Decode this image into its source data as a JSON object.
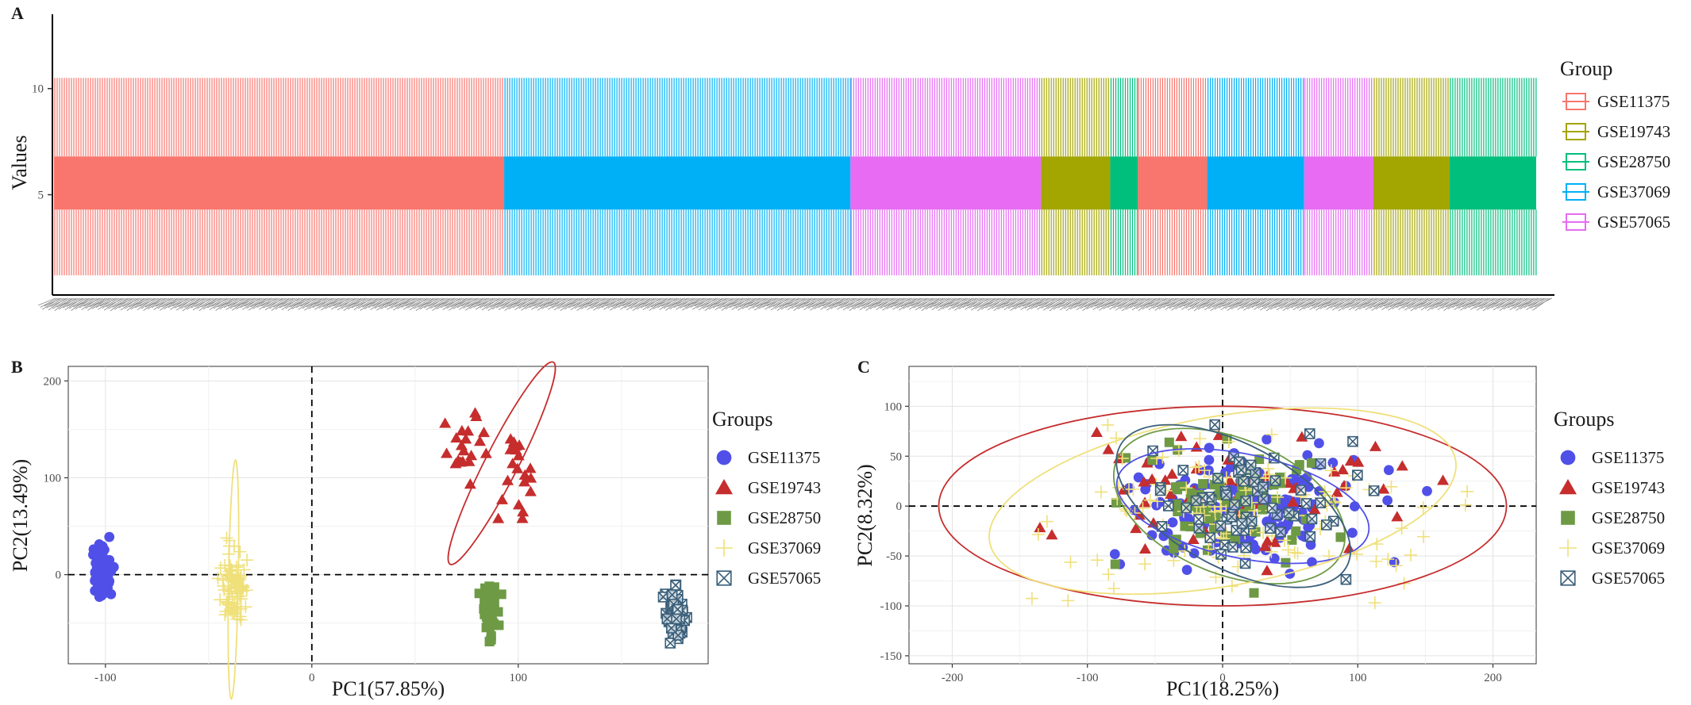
{
  "figure": {
    "panel_a": {
      "letter": "A",
      "ylabel": "Values",
      "legend_title": "Group"
    },
    "panel_b": {
      "letter": "B",
      "xlabel": "PC1(57.85%)",
      "ylabel": "PC2(13.49%)",
      "legend_title": "Groups"
    },
    "panel_c": {
      "letter": "C",
      "xlabel": "PC1(18.25%)",
      "ylabel": "PC2(8.32%)",
      "legend_title": "Groups"
    }
  },
  "colors": {
    "GSE11375_box": "#F8766D",
    "GSE19743_box": "#A3A500",
    "GSE28750_box": "#00BF7D",
    "GSE37069_box": "#00B0F6",
    "GSE57065_box": "#E76BF3",
    "GSE11375_pca": "#5050E8",
    "GSE19743_pca": "#C62D2D",
    "GSE28750_pca": "#6E9A45",
    "GSE37069_pca": "#EFE07A",
    "GSE57065_pca": "#3A5F7A"
  },
  "chart_data": [
    {
      "type": "boxplot",
      "panel": "A",
      "title": "",
      "ylabel": "Values",
      "xlabel": "",
      "ylim": [
        0.5,
        13.5
      ],
      "yticks": [
        5,
        10
      ],
      "legend": {
        "title": "Group",
        "position": "right",
        "entries": [
          "GSE11375",
          "GSE19743",
          "GSE28750",
          "GSE37069",
          "GSE57065"
        ]
      },
      "box_stats": {
        "whisker_low": 1.2,
        "q1": 4.3,
        "q3": 6.8,
        "whisker_high": 10.5
      },
      "segments": [
        {
          "group": "GSE11375",
          "samples": 130
        },
        {
          "group": "GSE37069",
          "samples": 100
        },
        {
          "group": "GSE57065",
          "samples": 55
        },
        {
          "group": "GSE19743",
          "samples": 20
        },
        {
          "group": "GSE28750",
          "samples": 8
        },
        {
          "group": "GSE11375",
          "samples": 20
        },
        {
          "group": "GSE37069",
          "samples": 28
        },
        {
          "group": "GSE57065",
          "samples": 20
        },
        {
          "group": "GSE19743",
          "samples": 22
        },
        {
          "group": "GSE28750",
          "samples": 25
        }
      ]
    },
    {
      "type": "scatter",
      "panel": "B",
      "xlabel": "PC1(57.85%)",
      "ylabel": "PC2(13.49%)",
      "xlim": [
        -118,
        192
      ],
      "ylim": [
        -92,
        215
      ],
      "xticks": [
        -100,
        0,
        100
      ],
      "yticks": [
        0,
        100,
        200
      ],
      "legend": {
        "title": "Groups",
        "position": "right"
      },
      "series": [
        {
          "name": "GSE11375",
          "shape": "circle",
          "cx": -102,
          "cy": 0,
          "sx": 2.5,
          "sy": 16,
          "n": 80,
          "ylo": -48,
          "yhi": 45
        },
        {
          "name": "GSE19743",
          "shape": "triangle",
          "cx": 90,
          "cy": 115,
          "sx": 8,
          "sy": 20,
          "n": 40,
          "clusters": [
            [
              75,
              140,
              4,
              18
            ],
            [
              100,
              105,
              5,
              22
            ]
          ],
          "ellipse": {
            "cx": 92,
            "cy": 115,
            "rx": 55,
            "ry": 17,
            "angle_deg": -63
          }
        },
        {
          "name": "GSE28750",
          "shape": "square",
          "cx": 86,
          "cy": -37,
          "sx": 2.0,
          "sy": 13,
          "n": 60,
          "ylo": -70,
          "yhi": -2
        },
        {
          "name": "GSE37069",
          "shape": "plus",
          "cx": -38,
          "cy": -12,
          "sx": 3.0,
          "sy": 18,
          "n": 90,
          "ylo": -62,
          "yhi": 48,
          "ellipse": {
            "cx": -38,
            "cy": -5,
            "rx": 58,
            "ry": 5,
            "angle_deg": -89
          }
        },
        {
          "name": "GSE57065",
          "shape": "boxx",
          "cx": 176,
          "cy": -45,
          "sx": 2.2,
          "sy": 13,
          "n": 70,
          "ylo": -82,
          "yhi": 5
        }
      ]
    },
    {
      "type": "scatter",
      "panel": "C",
      "xlabel": "PC1(18.25%)",
      "ylabel": "PC2(8.32%)",
      "xlim": [
        -232,
        232
      ],
      "ylim": [
        -158,
        140
      ],
      "xticks": [
        -200,
        -100,
        0,
        100,
        200
      ],
      "yticks": [
        -150,
        -100,
        -50,
        0,
        50,
        100
      ],
      "legend": {
        "title": "Groups",
        "position": "right"
      },
      "series": [
        {
          "name": "GSE11375",
          "shape": "circle",
          "cx": 20,
          "cy": 0,
          "sx": 45,
          "sy": 28,
          "n": 150,
          "ellipse": {
            "cx": 15,
            "cy": 0,
            "rx": 95,
            "ry": 52,
            "angle_deg": 12
          }
        },
        {
          "name": "GSE19743",
          "shape": "triangle",
          "cx": 0,
          "cy": 20,
          "sx": 70,
          "sy": 35,
          "n": 60,
          "ellipse": {
            "cx": 0,
            "cy": 0,
            "rx": 210,
            "ry": 100,
            "angle_deg": 0
          }
        },
        {
          "name": "GSE28750",
          "shape": "square",
          "cx": 0,
          "cy": 5,
          "sx": 35,
          "sy": 32,
          "n": 70,
          "ellipse": {
            "cx": 5,
            "cy": 0,
            "rx": 90,
            "ry": 68,
            "angle_deg": 22
          }
        },
        {
          "name": "GSE37069",
          "shape": "plus",
          "cx": 20,
          "cy": -10,
          "sx": 75,
          "sy": 35,
          "n": 120,
          "ellipse": {
            "cx": 0,
            "cy": 5,
            "rx": 175,
            "ry": 85,
            "angle_deg": -10
          }
        },
        {
          "name": "GSE57065",
          "shape": "boxx",
          "cx": 10,
          "cy": 0,
          "sx": 35,
          "sy": 32,
          "n": 70,
          "ellipse": {
            "cx": 8,
            "cy": 0,
            "rx": 95,
            "ry": 62,
            "angle_deg": 28
          }
        }
      ]
    }
  ]
}
